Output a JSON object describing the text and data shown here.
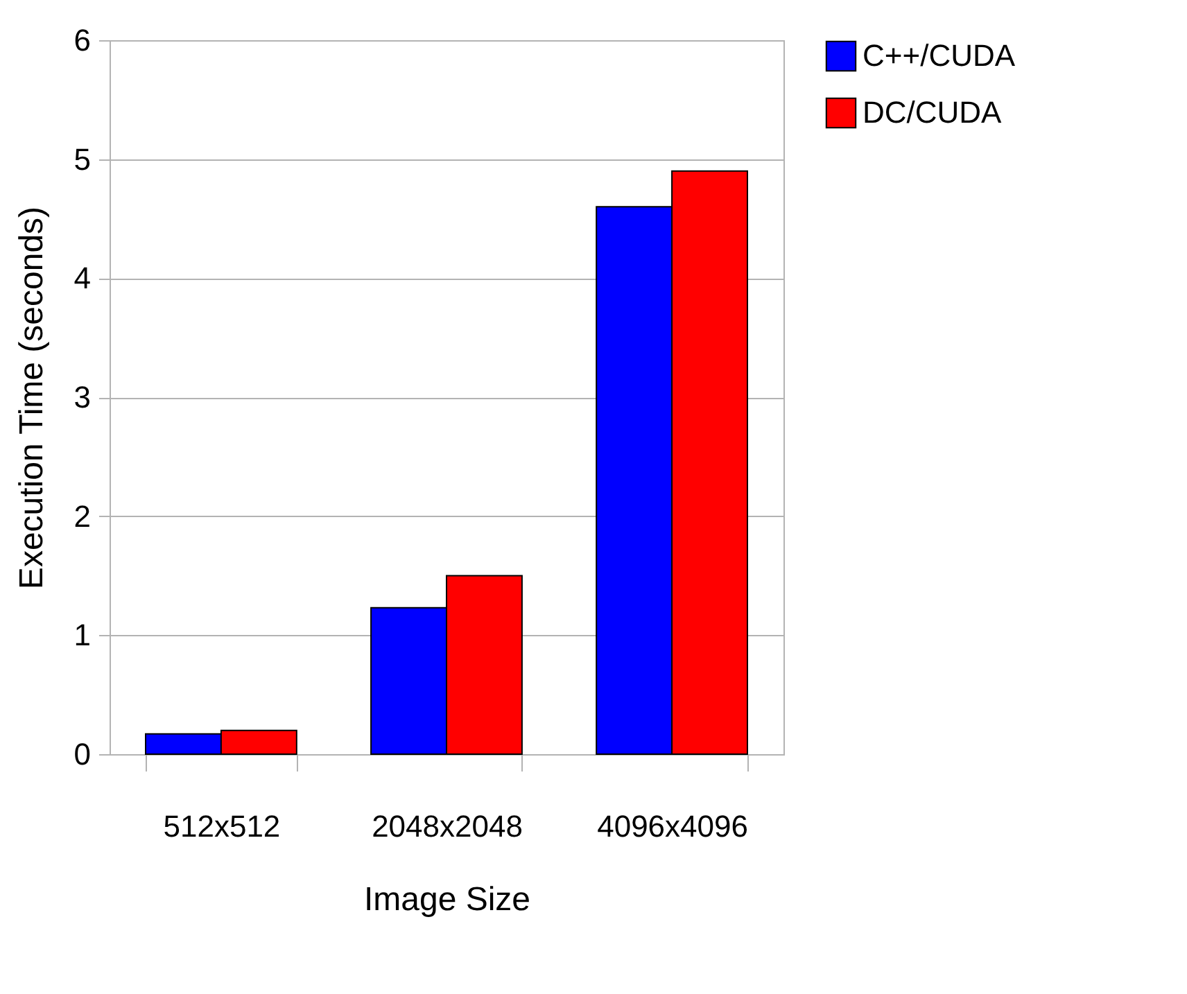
{
  "chart_data": {
    "type": "bar",
    "xlabel": "Image Size",
    "ylabel": "Execution Time (seconds)",
    "categories": [
      "512x512",
      "2048x2048",
      "4096x4096"
    ],
    "series": [
      {
        "name": "C++/CUDA",
        "color": "#0000ff",
        "values": [
          0.17,
          1.23,
          4.6
        ]
      },
      {
        "name": "DC/CUDA",
        "color": "#ff0000",
        "values": [
          0.2,
          1.5,
          4.9
        ]
      }
    ],
    "ylim": [
      0,
      6
    ],
    "yticks": [
      0,
      1,
      2,
      3,
      4,
      5,
      6
    ],
    "grid": "y",
    "legend": "right"
  }
}
